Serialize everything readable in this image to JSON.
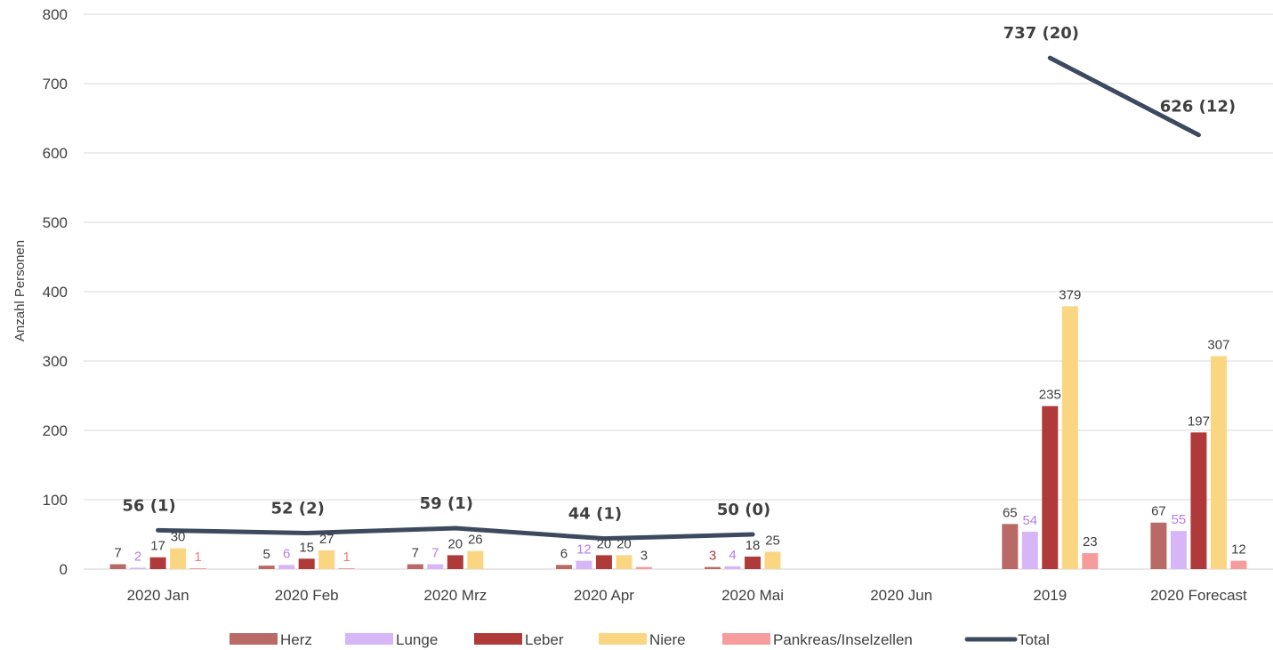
{
  "chart_data": {
    "type": "bar",
    "ylabel": "Anzahl Personen",
    "xlabel": "",
    "ylim": [
      0,
      800
    ],
    "yticks": [
      0,
      100,
      200,
      300,
      400,
      500,
      600,
      700,
      800
    ],
    "grid": "horizontal",
    "legend_position": "bottom",
    "categories": [
      "2020 Jan",
      "2020 Feb",
      "2020 Mrz",
      "2020 Apr",
      "2020 Mai",
      "2020 Jun",
      "2019",
      "2020 Forecast"
    ],
    "series": [
      {
        "name": "Herz",
        "color": "#b96a66",
        "label_color": "#404040",
        "values": [
          7,
          5,
          7,
          6,
          3,
          null,
          65,
          67
        ],
        "labels": [
          "7",
          "5",
          "7",
          "6",
          "",
          "",
          "65",
          "67"
        ]
      },
      {
        "name": "Lunge",
        "color": "#d6b6f7",
        "label_color": "#b57ee6",
        "values": [
          2,
          6,
          7,
          12,
          4,
          null,
          54,
          55
        ],
        "labels": [
          "2",
          "6",
          "7",
          "12",
          "4",
          "",
          "54",
          "55"
        ]
      },
      {
        "name": "Leber",
        "color": "#b03a3a",
        "label_color": "#404040",
        "values": [
          17,
          15,
          20,
          20,
          18,
          null,
          235,
          197
        ],
        "labels": [
          "17",
          "15",
          "20",
          "20",
          "18",
          "",
          "235",
          "197"
        ]
      },
      {
        "name": "Niere",
        "color": "#fbd682",
        "label_color": "#404040",
        "values": [
          30,
          27,
          26,
          20,
          25,
          null,
          379,
          307
        ],
        "labels": [
          "30",
          "27",
          "26",
          "20",
          "25",
          "",
          "379",
          "307"
        ]
      },
      {
        "name": "Pankreas/Inselzellen",
        "color": "#f79c9c",
        "label_color": "#404040",
        "values": [
          1,
          1,
          0,
          3,
          0,
          null,
          23,
          12
        ],
        "labels": [
          "1",
          "1",
          "",
          "3",
          "",
          "",
          "23",
          "12"
        ]
      }
    ],
    "extra_labels": [
      {
        "category": 4,
        "series": 0,
        "text": "3",
        "color": "#b03a3a"
      },
      {
        "category": 0,
        "series": 4,
        "text": "1",
        "color": "#f27d7d",
        "override": true
      },
      {
        "category": 1,
        "series": 4,
        "text": "1",
        "color": "#f27d7d",
        "override": true
      }
    ],
    "total": {
      "name": "Total",
      "color": "#3d4a5e",
      "segments": [
        {
          "points": [
            [
              0,
              56
            ],
            [
              1,
              52
            ],
            [
              2,
              59
            ],
            [
              3,
              44
            ],
            [
              4,
              50
            ]
          ]
        },
        {
          "points": [
            [
              6,
              737
            ],
            [
              7,
              626
            ]
          ]
        }
      ],
      "labels": [
        {
          "category": 0,
          "value": 56,
          "text": "56 (1)"
        },
        {
          "category": 1,
          "value": 52,
          "text": "52 (2)"
        },
        {
          "category": 2,
          "value": 59,
          "text": "59 (1)"
        },
        {
          "category": 3,
          "value": 44,
          "text": "44 (1)"
        },
        {
          "category": 4,
          "value": 50,
          "text": "50 (0)"
        },
        {
          "category": 6,
          "value": 737,
          "text": "737 (20)"
        },
        {
          "category": 7,
          "value": 626,
          "text": "626 (12)"
        }
      ]
    }
  }
}
